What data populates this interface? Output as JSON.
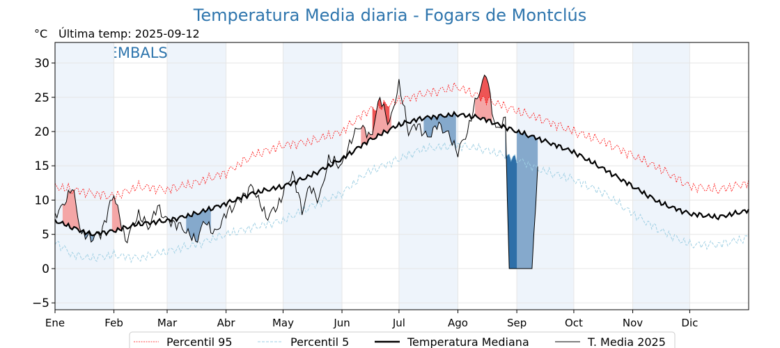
{
  "chart_data": {
    "type": "line",
    "title": "Temperatura Media diaria - Fogars de Montclús",
    "ylabel": "°C",
    "subtitle": "Última temp: 2025-09-12",
    "watermark": "WWW.EMBALSES.NET",
    "ylim": [
      -6,
      33
    ],
    "xlim": [
      1,
      366
    ],
    "grid": true,
    "legend_position": "bottom-center",
    "yticks": [
      30,
      25,
      20,
      15,
      10,
      5,
      0,
      -5
    ],
    "ytick_labels": [
      "30",
      "25",
      "20",
      "15",
      "10",
      "5",
      "0",
      "−5"
    ],
    "x_tick_days": [
      1,
      32,
      60,
      91,
      121,
      152,
      182,
      213,
      244,
      274,
      305,
      335
    ],
    "x_tick_labels": [
      "Ene",
      "Feb",
      "Mar",
      "Abr",
      "May",
      "Jun",
      "Jul",
      "Ago",
      "Sep",
      "Oct",
      "Nov",
      "Dic"
    ],
    "colors": {
      "p95": "#ff0000",
      "p5": "#9ecfe3",
      "median": "#000000",
      "current": "#000000",
      "above_fill": "#f4a6a6",
      "above_p95_fill": "#ee5555",
      "below_fill": "#85a9cc",
      "below_p5_fill": "#2e6fa8",
      "month_band": "#eef4fb"
    },
    "series": [
      {
        "name": "Percentil 95",
        "style": "dotted",
        "x": [
          1,
          10,
          20,
          32,
          45,
          60,
          75,
          91,
          105,
          121,
          135,
          152,
          165,
          182,
          195,
          213,
          225,
          244,
          255,
          274,
          290,
          305,
          320,
          335,
          350,
          366
        ],
        "values": [
          12,
          11.5,
          11,
          10.5,
          12,
          11.5,
          12.5,
          14,
          16.5,
          18,
          18.5,
          20,
          23,
          24.5,
          25.5,
          26.5,
          25,
          23,
          22,
          20,
          18.5,
          16.5,
          14.5,
          12,
          11.5,
          12.5
        ]
      },
      {
        "name": "Percentil 5",
        "style": "dashed",
        "x": [
          1,
          10,
          20,
          32,
          45,
          60,
          75,
          91,
          105,
          121,
          135,
          152,
          165,
          182,
          195,
          213,
          225,
          244,
          255,
          274,
          290,
          305,
          320,
          335,
          350,
          366
        ],
        "values": [
          4,
          2,
          1.5,
          2,
          1.5,
          2.5,
          3.5,
          5,
          6,
          7,
          9,
          11,
          14,
          16,
          17.5,
          18,
          17.5,
          16,
          14.5,
          13,
          11,
          8,
          5.5,
          3.5,
          3.5,
          4.5
        ]
      },
      {
        "name": "Temperatura Mediana",
        "style": "solid-thick",
        "x": [
          1,
          10,
          20,
          32,
          45,
          60,
          75,
          91,
          105,
          121,
          135,
          152,
          165,
          182,
          195,
          213,
          225,
          244,
          255,
          274,
          290,
          305,
          320,
          335,
          350,
          366
        ],
        "values": [
          7,
          6,
          5,
          5.5,
          6.5,
          7,
          8,
          9.5,
          11,
          12,
          13.5,
          16,
          18.5,
          21,
          22,
          22.5,
          22,
          20,
          19,
          17,
          14.5,
          12,
          9.5,
          8,
          7.5,
          8.5
        ]
      },
      {
        "name": "T. Media 2025",
        "style": "solid-thin",
        "x": [
          1,
          5,
          10,
          15,
          20,
          25,
          32,
          38,
          45,
          50,
          55,
          60,
          65,
          70,
          75,
          80,
          85,
          91,
          98,
          105,
          112,
          118,
          121,
          126,
          131,
          135,
          140,
          145,
          152,
          157,
          162,
          167,
          172,
          177,
          182,
          187,
          192,
          197,
          202,
          207,
          213,
          218,
          223,
          228,
          233,
          238,
          240,
          244,
          248,
          252,
          255
        ],
        "values": [
          8,
          9,
          12,
          5,
          4.5,
          5,
          11,
          4,
          8,
          6,
          9,
          7,
          6.5,
          5.5,
          4,
          7,
          5,
          8,
          10,
          12,
          7.5,
          9,
          11,
          14,
          8.5,
          12,
          10,
          16,
          15,
          19,
          21,
          19,
          25,
          21,
          27,
          20,
          21,
          19,
          21,
          20,
          17,
          20,
          25,
          28.5,
          20,
          22,
          0,
          0,
          0,
          0,
          15
        ]
      }
    ],
    "anomaly_regions": [
      {
        "type": "above",
        "x": [
          5,
          14
        ]
      },
      {
        "type": "above",
        "x": [
          31,
          37
        ]
      },
      {
        "type": "above",
        "x": [
          162,
          178
        ]
      },
      {
        "type": "above_p95",
        "x": [
          168,
          177
        ]
      },
      {
        "type": "above",
        "x": [
          222,
          231
        ]
      },
      {
        "type": "above_p95",
        "x": [
          224,
          230
        ]
      },
      {
        "type": "below",
        "x": [
          15,
          24
        ]
      },
      {
        "type": "below",
        "x": [
          70,
          83
        ]
      },
      {
        "type": "below",
        "x": [
          195,
          212
        ]
      },
      {
        "type": "below_p5",
        "x": [
          238,
          249
        ]
      },
      {
        "type": "below",
        "x": [
          244,
          256
        ]
      }
    ]
  },
  "legend": [
    {
      "label": "Percentil 95",
      "style": "dotted",
      "color": "#ff0000"
    },
    {
      "label": "Percentil 5",
      "style": "dashed",
      "color": "#9ecfe3"
    },
    {
      "label": "Temperatura Mediana",
      "style": "solid-thick",
      "color": "#000000"
    },
    {
      "label": "T. Media 2025",
      "style": "solid-thin",
      "color": "#000000"
    }
  ]
}
